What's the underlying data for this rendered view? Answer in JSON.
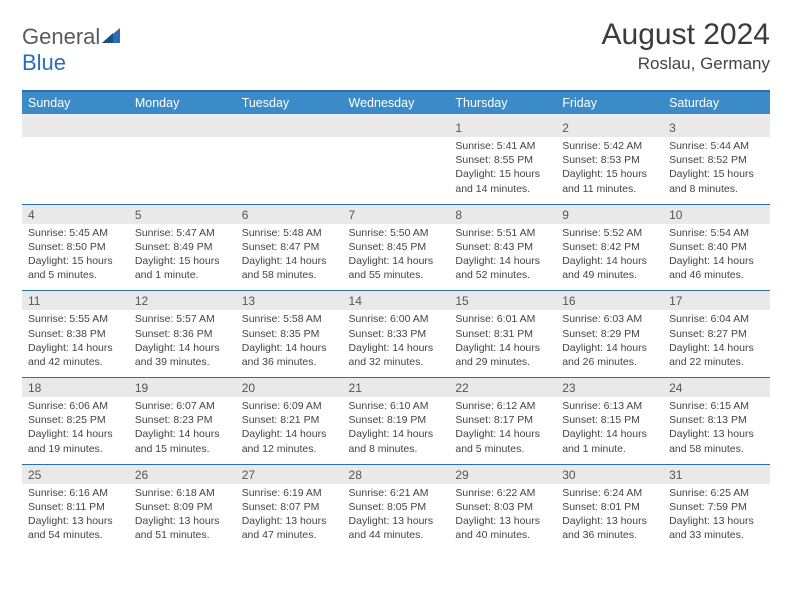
{
  "brand": {
    "name_left": "General",
    "name_right": "Blue"
  },
  "header": {
    "title": "August 2024",
    "location": "Roslau, Germany"
  },
  "colors": {
    "brand_blue": "#2a6ebb",
    "header_blue": "#3b8bc8",
    "row_gray": "#e9e9e9",
    "text_dark": "#333333"
  },
  "days_of_week": [
    "Sunday",
    "Monday",
    "Tuesday",
    "Wednesday",
    "Thursday",
    "Friday",
    "Saturday"
  ],
  "first_weekday_index": 4,
  "days": [
    {
      "n": "1",
      "sunrise": "Sunrise: 5:41 AM",
      "sunset": "Sunset: 8:55 PM",
      "daylight1": "Daylight: 15 hours",
      "daylight2": "and 14 minutes."
    },
    {
      "n": "2",
      "sunrise": "Sunrise: 5:42 AM",
      "sunset": "Sunset: 8:53 PM",
      "daylight1": "Daylight: 15 hours",
      "daylight2": "and 11 minutes."
    },
    {
      "n": "3",
      "sunrise": "Sunrise: 5:44 AM",
      "sunset": "Sunset: 8:52 PM",
      "daylight1": "Daylight: 15 hours",
      "daylight2": "and 8 minutes."
    },
    {
      "n": "4",
      "sunrise": "Sunrise: 5:45 AM",
      "sunset": "Sunset: 8:50 PM",
      "daylight1": "Daylight: 15 hours",
      "daylight2": "and 5 minutes."
    },
    {
      "n": "5",
      "sunrise": "Sunrise: 5:47 AM",
      "sunset": "Sunset: 8:49 PM",
      "daylight1": "Daylight: 15 hours",
      "daylight2": "and 1 minute."
    },
    {
      "n": "6",
      "sunrise": "Sunrise: 5:48 AM",
      "sunset": "Sunset: 8:47 PM",
      "daylight1": "Daylight: 14 hours",
      "daylight2": "and 58 minutes."
    },
    {
      "n": "7",
      "sunrise": "Sunrise: 5:50 AM",
      "sunset": "Sunset: 8:45 PM",
      "daylight1": "Daylight: 14 hours",
      "daylight2": "and 55 minutes."
    },
    {
      "n": "8",
      "sunrise": "Sunrise: 5:51 AM",
      "sunset": "Sunset: 8:43 PM",
      "daylight1": "Daylight: 14 hours",
      "daylight2": "and 52 minutes."
    },
    {
      "n": "9",
      "sunrise": "Sunrise: 5:52 AM",
      "sunset": "Sunset: 8:42 PM",
      "daylight1": "Daylight: 14 hours",
      "daylight2": "and 49 minutes."
    },
    {
      "n": "10",
      "sunrise": "Sunrise: 5:54 AM",
      "sunset": "Sunset: 8:40 PM",
      "daylight1": "Daylight: 14 hours",
      "daylight2": "and 46 minutes."
    },
    {
      "n": "11",
      "sunrise": "Sunrise: 5:55 AM",
      "sunset": "Sunset: 8:38 PM",
      "daylight1": "Daylight: 14 hours",
      "daylight2": "and 42 minutes."
    },
    {
      "n": "12",
      "sunrise": "Sunrise: 5:57 AM",
      "sunset": "Sunset: 8:36 PM",
      "daylight1": "Daylight: 14 hours",
      "daylight2": "and 39 minutes."
    },
    {
      "n": "13",
      "sunrise": "Sunrise: 5:58 AM",
      "sunset": "Sunset: 8:35 PM",
      "daylight1": "Daylight: 14 hours",
      "daylight2": "and 36 minutes."
    },
    {
      "n": "14",
      "sunrise": "Sunrise: 6:00 AM",
      "sunset": "Sunset: 8:33 PM",
      "daylight1": "Daylight: 14 hours",
      "daylight2": "and 32 minutes."
    },
    {
      "n": "15",
      "sunrise": "Sunrise: 6:01 AM",
      "sunset": "Sunset: 8:31 PM",
      "daylight1": "Daylight: 14 hours",
      "daylight2": "and 29 minutes."
    },
    {
      "n": "16",
      "sunrise": "Sunrise: 6:03 AM",
      "sunset": "Sunset: 8:29 PM",
      "daylight1": "Daylight: 14 hours",
      "daylight2": "and 26 minutes."
    },
    {
      "n": "17",
      "sunrise": "Sunrise: 6:04 AM",
      "sunset": "Sunset: 8:27 PM",
      "daylight1": "Daylight: 14 hours",
      "daylight2": "and 22 minutes."
    },
    {
      "n": "18",
      "sunrise": "Sunrise: 6:06 AM",
      "sunset": "Sunset: 8:25 PM",
      "daylight1": "Daylight: 14 hours",
      "daylight2": "and 19 minutes."
    },
    {
      "n": "19",
      "sunrise": "Sunrise: 6:07 AM",
      "sunset": "Sunset: 8:23 PM",
      "daylight1": "Daylight: 14 hours",
      "daylight2": "and 15 minutes."
    },
    {
      "n": "20",
      "sunrise": "Sunrise: 6:09 AM",
      "sunset": "Sunset: 8:21 PM",
      "daylight1": "Daylight: 14 hours",
      "daylight2": "and 12 minutes."
    },
    {
      "n": "21",
      "sunrise": "Sunrise: 6:10 AM",
      "sunset": "Sunset: 8:19 PM",
      "daylight1": "Daylight: 14 hours",
      "daylight2": "and 8 minutes."
    },
    {
      "n": "22",
      "sunrise": "Sunrise: 6:12 AM",
      "sunset": "Sunset: 8:17 PM",
      "daylight1": "Daylight: 14 hours",
      "daylight2": "and 5 minutes."
    },
    {
      "n": "23",
      "sunrise": "Sunrise: 6:13 AM",
      "sunset": "Sunset: 8:15 PM",
      "daylight1": "Daylight: 14 hours",
      "daylight2": "and 1 minute."
    },
    {
      "n": "24",
      "sunrise": "Sunrise: 6:15 AM",
      "sunset": "Sunset: 8:13 PM",
      "daylight1": "Daylight: 13 hours",
      "daylight2": "and 58 minutes."
    },
    {
      "n": "25",
      "sunrise": "Sunrise: 6:16 AM",
      "sunset": "Sunset: 8:11 PM",
      "daylight1": "Daylight: 13 hours",
      "daylight2": "and 54 minutes."
    },
    {
      "n": "26",
      "sunrise": "Sunrise: 6:18 AM",
      "sunset": "Sunset: 8:09 PM",
      "daylight1": "Daylight: 13 hours",
      "daylight2": "and 51 minutes."
    },
    {
      "n": "27",
      "sunrise": "Sunrise: 6:19 AM",
      "sunset": "Sunset: 8:07 PM",
      "daylight1": "Daylight: 13 hours",
      "daylight2": "and 47 minutes."
    },
    {
      "n": "28",
      "sunrise": "Sunrise: 6:21 AM",
      "sunset": "Sunset: 8:05 PM",
      "daylight1": "Daylight: 13 hours",
      "daylight2": "and 44 minutes."
    },
    {
      "n": "29",
      "sunrise": "Sunrise: 6:22 AM",
      "sunset": "Sunset: 8:03 PM",
      "daylight1": "Daylight: 13 hours",
      "daylight2": "and 40 minutes."
    },
    {
      "n": "30",
      "sunrise": "Sunrise: 6:24 AM",
      "sunset": "Sunset: 8:01 PM",
      "daylight1": "Daylight: 13 hours",
      "daylight2": "and 36 minutes."
    },
    {
      "n": "31",
      "sunrise": "Sunrise: 6:25 AM",
      "sunset": "Sunset: 7:59 PM",
      "daylight1": "Daylight: 13 hours",
      "daylight2": "and 33 minutes."
    }
  ]
}
